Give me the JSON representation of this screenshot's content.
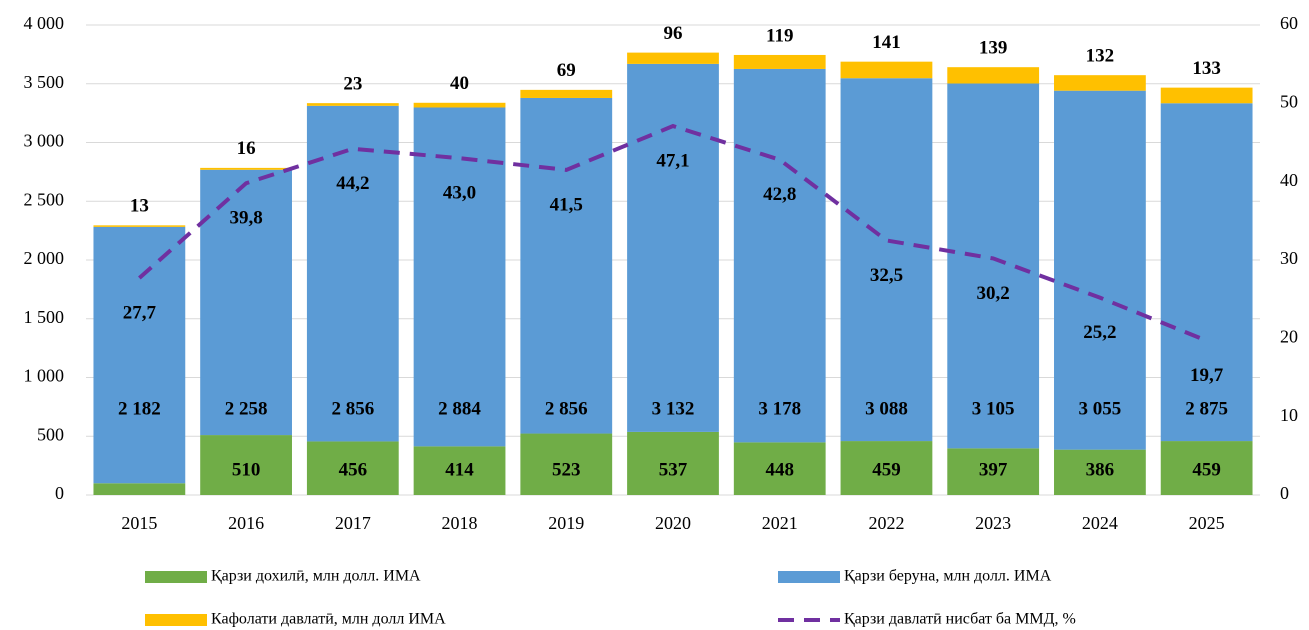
{
  "chart_data": {
    "type": "stacked_bar_line",
    "categories": [
      "2015",
      "2016",
      "2017",
      "2018",
      "2019",
      "2020",
      "2021",
      "2022",
      "2023",
      "2024",
      "2025"
    ],
    "series": [
      {
        "name": "Қарзи дохилӣ, млн долл. ИМА",
        "color": "#70ad47",
        "values": [
          100,
          510,
          456,
          414,
          523,
          537,
          448,
          459,
          397,
          386,
          459
        ]
      },
      {
        "name": "Қарзи беруна, млн долл. ИМА",
        "color": "#5b9bd5",
        "values": [
          2182,
          2258,
          2856,
          2884,
          2856,
          3132,
          3178,
          3088,
          3105,
          3055,
          2875
        ],
        "value_labels": [
          "2 182",
          "2 258",
          "2 856",
          "2 884",
          "2 856",
          "3 132",
          "3 178",
          "3 088",
          "3 105",
          "3 055",
          "2 875"
        ]
      },
      {
        "name": "Кафолати давлатӣ, млн долл ИМА",
        "color": "#ffc000",
        "values": [
          13,
          16,
          23,
          40,
          69,
          96,
          119,
          141,
          139,
          132,
          133
        ]
      },
      {
        "name": "Қарзи давлатӣ нисбат ба ММД, %",
        "color": "#7030a0",
        "axis": "y2",
        "dashed": true,
        "values": [
          27.7,
          39.8,
          44.2,
          43.0,
          41.5,
          47.1,
          42.8,
          32.5,
          30.2,
          25.2,
          19.7
        ],
        "value_labels": [
          "27,7",
          "39,8",
          "44,2",
          "43,0",
          "41,5",
          "47,1",
          "42,8",
          "32,5",
          "30,2",
          "25,2",
          "19,7"
        ]
      }
    ],
    "ylim": [
      0,
      4000
    ],
    "yticks": [
      0,
      500,
      {
        "value": 1000,
        "label": "1 000"
      },
      {
        "value": 1500,
        "label": "1 500"
      },
      {
        "value": 2000,
        "label": "2 000"
      },
      {
        "value": 2500,
        "label": "2 500"
      },
      {
        "value": 3000,
        "label": "3 000"
      },
      {
        "value": 3500,
        "label": "3 500"
      },
      {
        "value": 4000,
        "label": "4 000"
      }
    ],
    "y2lim": [
      0,
      60
    ],
    "y2ticks": [
      0,
      10,
      20,
      30,
      40,
      50,
      60
    ],
    "grid": true
  }
}
